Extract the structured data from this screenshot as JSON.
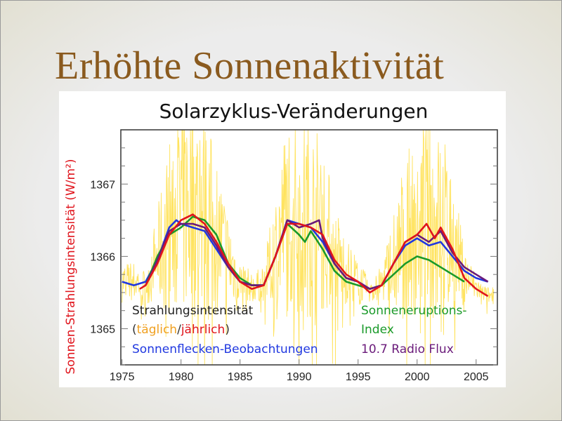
{
  "slide": {
    "title": "Erhöhte Sonnenaktivität"
  },
  "colors": {
    "title": "#8a5a1e",
    "daily": "#ffd92a",
    "annual": "#e0141c",
    "sunspot": "#2038e0",
    "flare": "#1a9a2a",
    "radio": "#6a1a7a",
    "ylabel": "#e0141c"
  },
  "chart_data": {
    "type": "line",
    "title": "Solarzyklus-Veränderungen",
    "xlabel": "",
    "ylabel": "Sonnen-Strahlungsintensität (W/m²)",
    "xlim": [
      1974.9,
      2006.8
    ],
    "ylim": [
      1364.5,
      1367.75
    ],
    "xticks": [
      1975,
      1980,
      1985,
      1990,
      1995,
      2000,
      2005
    ],
    "yticks": [
      1365,
      1366,
      1367
    ],
    "grid": false,
    "legend": [
      {
        "text": "Strahlungsintensität",
        "color": "#222222"
      },
      {
        "parts": [
          "(",
          "täglich",
          "/",
          "jährlich",
          ")"
        ],
        "colors": [
          "#333333",
          "#f0a020",
          "#333333",
          "#e0141c",
          "#333333"
        ]
      },
      {
        "text": "Sonnenflecken-Beobachtungen",
        "color": "#2038e0"
      },
      {
        "text": "Sonneneruptions-",
        "color": "#1a9a2a"
      },
      {
        "text": "Index",
        "color": "#1a9a2a"
      },
      {
        "text": "10.7 Radio Flux",
        "color": "#6a1a7a"
      }
    ],
    "series": [
      {
        "name": "Sonnenflecken-Beobachtungen",
        "color": "#2038e0",
        "x": [
          1975,
          1976,
          1977,
          1978,
          1979,
          1979.6,
          1980,
          1981,
          1982,
          1983,
          1984,
          1985,
          1986,
          1987,
          1988,
          1989,
          1990,
          1991,
          1992,
          1993,
          1994,
          1995,
          1996,
          1997,
          1998,
          1999,
          2000,
          2001,
          2002,
          2003,
          2004,
          2005,
          2006
        ],
        "y": [
          1365.65,
          1365.6,
          1365.65,
          1365.95,
          1366.4,
          1366.5,
          1366.45,
          1366.4,
          1366.35,
          1366.1,
          1365.85,
          1365.65,
          1365.6,
          1365.6,
          1366.0,
          1366.5,
          1366.45,
          1366.4,
          1366.2,
          1365.9,
          1365.7,
          1365.65,
          1365.55,
          1365.6,
          1365.9,
          1366.15,
          1366.25,
          1366.15,
          1366.2,
          1366.0,
          1365.8,
          1365.7,
          1365.65
        ]
      },
      {
        "name": "Sonneneruptions-Index",
        "color": "#1a9a2a",
        "x": [
          1977,
          1978,
          1979,
          1980,
          1981,
          1982,
          1983,
          1984,
          1985,
          1986,
          1987,
          1988,
          1989,
          1990,
          1990.5,
          1991,
          1992,
          1993,
          1994,
          1995,
          1996,
          1997,
          1998,
          1999,
          2000,
          2001,
          2002,
          2003,
          2004
        ],
        "y": [
          1365.6,
          1366.0,
          1366.3,
          1366.4,
          1366.55,
          1366.5,
          1366.3,
          1365.9,
          1365.7,
          1365.6,
          1365.6,
          1366.0,
          1366.45,
          1366.3,
          1366.2,
          1366.35,
          1366.1,
          1365.8,
          1365.65,
          1365.6,
          1365.55,
          1365.6,
          1365.75,
          1365.9,
          1366.0,
          1365.95,
          1365.85,
          1365.75,
          1365.65
        ]
      },
      {
        "name": "10.7 Radio Flux",
        "color": "#6a1a7a",
        "x": [
          1977,
          1978,
          1979,
          1980,
          1981,
          1982,
          1983,
          1984,
          1985,
          1986,
          1987,
          1988,
          1989,
          1990,
          1991,
          1991.7,
          1992,
          1993,
          1994,
          1995,
          1996,
          1997,
          1998,
          1999,
          2000,
          2001,
          2002,
          2003,
          2004,
          2005,
          2006
        ],
        "y": [
          1365.6,
          1365.95,
          1366.35,
          1366.45,
          1366.45,
          1366.4,
          1366.15,
          1365.85,
          1365.65,
          1365.6,
          1365.6,
          1366.0,
          1366.5,
          1366.4,
          1366.45,
          1366.5,
          1366.25,
          1365.9,
          1365.7,
          1365.65,
          1365.55,
          1365.6,
          1365.9,
          1366.2,
          1366.3,
          1366.2,
          1366.35,
          1366.05,
          1365.85,
          1365.75,
          1365.65
        ]
      },
      {
        "name": "jährlich",
        "color": "#e0141c",
        "x": [
          1976.5,
          1977,
          1978,
          1979,
          1980,
          1981,
          1982,
          1983,
          1984,
          1985,
          1986,
          1987,
          1988,
          1989,
          1990,
          1991,
          1992,
          1993,
          1994,
          1995,
          1996,
          1997,
          1998,
          1999,
          2000,
          2000.8,
          2001.5,
          2002,
          2003,
          2004,
          2005,
          2006
        ],
        "y": [
          1365.55,
          1365.6,
          1365.9,
          1366.3,
          1366.5,
          1366.58,
          1366.45,
          1366.2,
          1365.9,
          1365.65,
          1365.55,
          1365.6,
          1366.0,
          1366.45,
          1366.45,
          1366.4,
          1366.3,
          1365.95,
          1365.75,
          1365.65,
          1365.5,
          1365.6,
          1365.9,
          1366.2,
          1366.3,
          1366.45,
          1366.25,
          1366.4,
          1366.1,
          1365.7,
          1365.55,
          1365.45
        ]
      }
    ]
  }
}
